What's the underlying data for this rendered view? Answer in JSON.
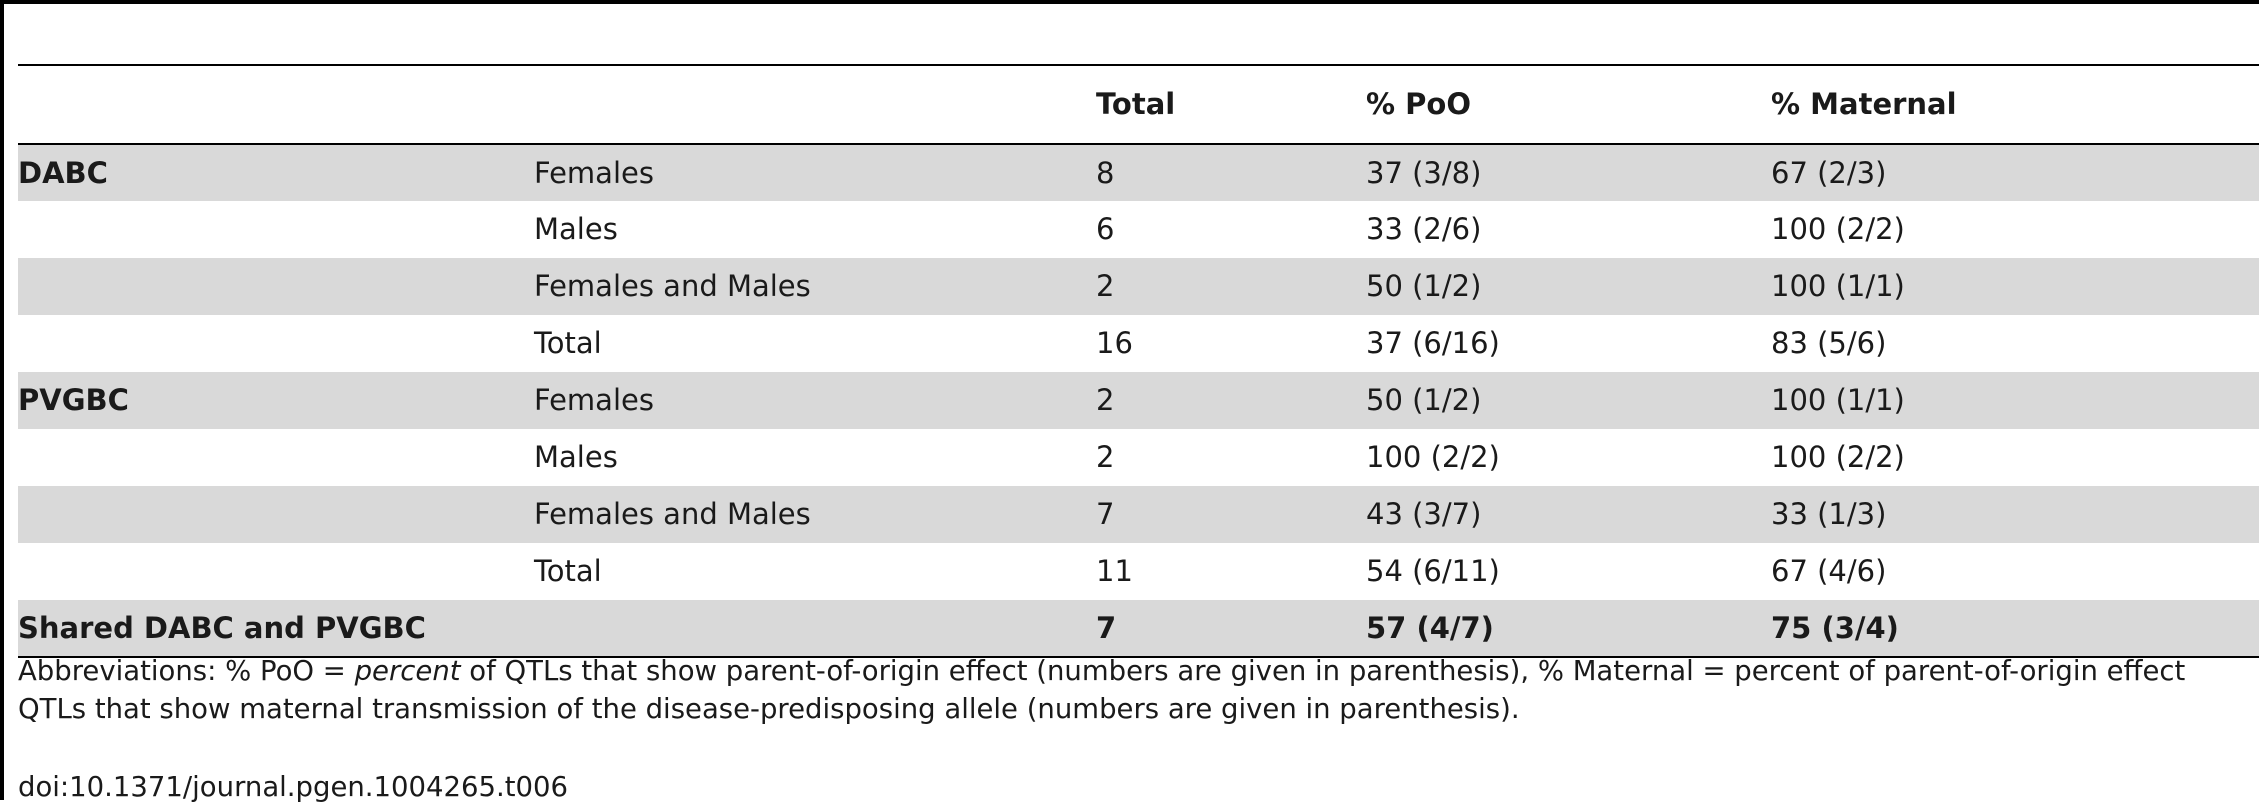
{
  "table": {
    "headers": [
      "",
      "",
      "Total",
      "% PoO",
      "% Maternal"
    ],
    "rows": [
      {
        "group": "DABC",
        "sex": "Females",
        "total": "8",
        "poo": "37 (3/8)",
        "maternal": "67 (2/3)"
      },
      {
        "group": "",
        "sex": "Males",
        "total": "6",
        "poo": "33 (2/6)",
        "maternal": "100 (2/2)"
      },
      {
        "group": "",
        "sex": "Females and Males",
        "total": "2",
        "poo": "50 (1/2)",
        "maternal": "100 (1/1)"
      },
      {
        "group": "",
        "sex": "Total",
        "total": "16",
        "poo": "37 (6/16)",
        "maternal": "83 (5/6)"
      },
      {
        "group": "PVGBC",
        "sex": "Females",
        "total": "2",
        "poo": "50 (1/2)",
        "maternal": "100 (1/1)"
      },
      {
        "group": "",
        "sex": "Males",
        "total": "2",
        "poo": "100 (2/2)",
        "maternal": "100 (2/2)"
      },
      {
        "group": "",
        "sex": "Females and Males",
        "total": "7",
        "poo": "43 (3/7)",
        "maternal": "33 (1/3)"
      },
      {
        "group": "",
        "sex": "Total",
        "total": "11",
        "poo": "54 (6/11)",
        "maternal": "67 (4/6)"
      },
      {
        "group": "Shared DABC and PVGBC",
        "sex": "",
        "total": "7",
        "poo": "57 (4/7)",
        "maternal": "75 (3/4)"
      }
    ]
  },
  "footnote": {
    "prefix": "Abbreviations: % PoO = ",
    "italic": "percent",
    "suffix": " of QTLs that show parent-of-origin effect (numbers are given in parenthesis), % Maternal = percent of parent-of-origin effect QTLs that show maternal transmission of the disease-predisposing allele (numbers are given in parenthesis)."
  },
  "doi": "doi:10.1371/journal.pgen.1004265.t006"
}
